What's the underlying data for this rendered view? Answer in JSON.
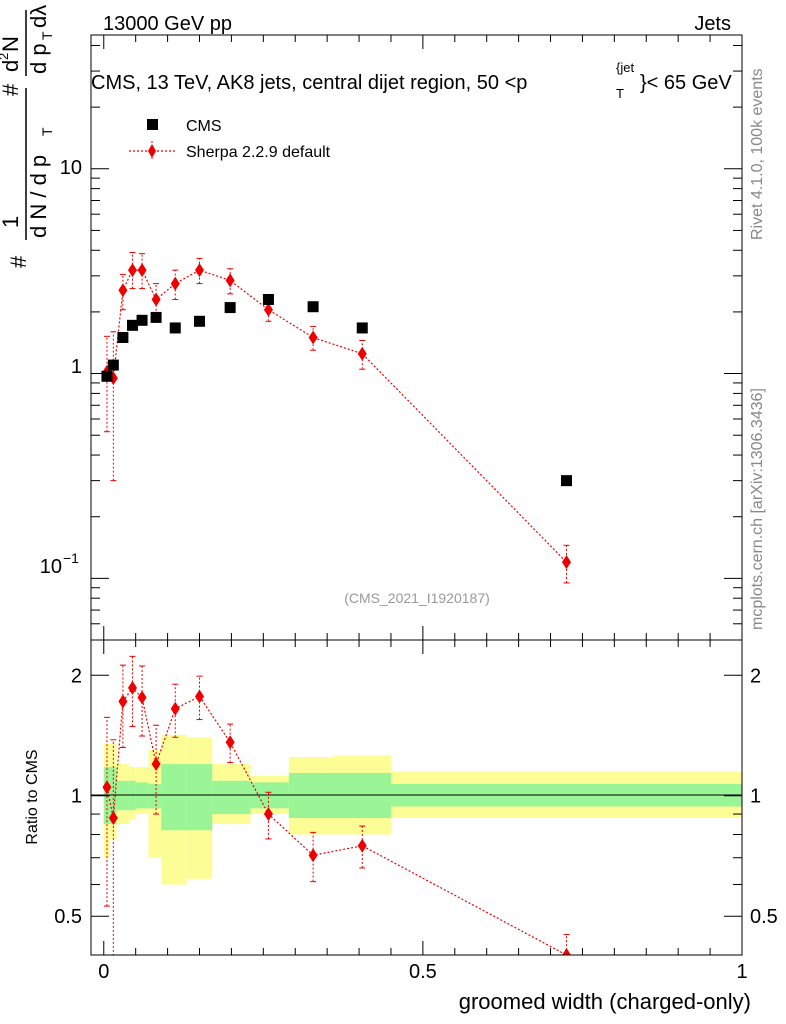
{
  "header": {
    "left": "13000 GeV pp",
    "right": "Jets"
  },
  "side_labels": {
    "rivet": "Rivet 4.1.0,  100k events",
    "mcplots": "mcplots.cern.ch [arXiv:1306.3436]"
  },
  "chart_data": [
    {
      "type": "scatter",
      "panel": "main",
      "title": "CMS, 13 TeV, AK8 jets, central dijet region, 50 <p_T^{jet}< 65 GeV",
      "title_parts": {
        "main": "CMS, 13 TeV, AK8 jets, central dijet region, 50 <p",
        "sub": "T",
        "sup": "{jet",
        "tail": "}< 65 GeV"
      },
      "ylabel": "1/(dN/dp_T) · d²N/(dp_T dλ)",
      "ylabel_parts": {
        "hash": "#",
        "one": "1",
        "dN": "d N / d p",
        "T": "T",
        "d2N": "d",
        "two": "2",
        "N": "N",
        "dpT": "d p",
        "dl": "dλ"
      },
      "yscale": "log",
      "ylim": [
        0.05,
        45
      ],
      "xlim": [
        -0.02,
        1.0
      ],
      "y_tick_labels": {
        "ten": "10",
        "one": "1",
        "tenth_base": "10",
        "tenth_exp": "−1"
      },
      "watermark": "(CMS_2021_I1920187)",
      "legend": {
        "position": "top-left",
        "entries": [
          "CMS",
          "Sherpa 2.2.9 default"
        ]
      },
      "series": [
        {
          "name": "CMS",
          "marker": "square",
          "color": "#000000",
          "x": [
            0.005,
            0.015,
            0.03,
            0.045,
            0.06,
            0.082,
            0.112,
            0.15,
            0.198,
            0.258,
            0.328,
            0.405,
            0.725
          ],
          "y": [
            0.97,
            1.1,
            1.5,
            1.72,
            1.82,
            1.88,
            1.67,
            1.8,
            2.1,
            2.3,
            2.12,
            1.67,
            0.3
          ]
        },
        {
          "name": "Sherpa 2.2.9 default",
          "marker": "diamond",
          "color": "#ee0000",
          "x": [
            0.005,
            0.015,
            0.03,
            0.045,
            0.06,
            0.082,
            0.112,
            0.15,
            0.198,
            0.258,
            0.328,
            0.405,
            0.725
          ],
          "y": [
            1.02,
            0.95,
            2.55,
            3.2,
            3.2,
            2.3,
            2.75,
            3.2,
            2.85,
            2.05,
            1.5,
            1.25,
            0.12
          ],
          "yerr_low": [
            0.5,
            0.65,
            0.5,
            0.6,
            0.6,
            0.45,
            0.45,
            0.45,
            0.4,
            0.25,
            0.2,
            0.2,
            0.025
          ],
          "yerr_high": [
            0.5,
            0.65,
            0.5,
            0.7,
            0.65,
            0.45,
            0.45,
            0.45,
            0.4,
            0.25,
            0.2,
            0.2,
            0.025
          ]
        }
      ]
    },
    {
      "type": "scatter",
      "panel": "ratio",
      "ylabel": "Ratio to CMS",
      "xlabel": "groomed width (charged-only)",
      "yscale": "log",
      "ylim": [
        0.4,
        2.45
      ],
      "xlim": [
        -0.02,
        1.0
      ],
      "x_ticks": [
        0,
        0.5,
        1
      ],
      "x_tick_labels": [
        "0",
        "0.5",
        "1"
      ],
      "y_ticks": [
        0.5,
        1,
        2
      ],
      "y_tick_labels": [
        "0.5",
        "1",
        "2"
      ],
      "bands": {
        "bins": [
          [
            0.0,
            0.01
          ],
          [
            0.01,
            0.02
          ],
          [
            0.02,
            0.04
          ],
          [
            0.04,
            0.05
          ],
          [
            0.05,
            0.07
          ],
          [
            0.07,
            0.09
          ],
          [
            0.09,
            0.13
          ],
          [
            0.13,
            0.17
          ],
          [
            0.17,
            0.23
          ],
          [
            0.23,
            0.29
          ],
          [
            0.29,
            0.36
          ],
          [
            0.36,
            0.45
          ],
          [
            0.45,
            1.0
          ]
        ],
        "stat_low": [
          0.85,
          0.85,
          0.92,
          0.92,
          0.93,
          0.93,
          0.82,
          0.82,
          0.9,
          0.93,
          0.88,
          0.88,
          0.94
        ],
        "stat_high": [
          1.18,
          1.18,
          1.09,
          1.09,
          1.08,
          1.07,
          1.2,
          1.2,
          1.09,
          1.08,
          1.14,
          1.14,
          1.07
        ],
        "total_low": [
          0.7,
          0.78,
          0.85,
          0.87,
          0.9,
          0.7,
          0.6,
          0.62,
          0.85,
          0.9,
          0.8,
          0.8,
          0.88
        ],
        "total_high": [
          1.35,
          1.35,
          1.2,
          1.18,
          1.18,
          1.3,
          1.42,
          1.4,
          1.2,
          1.12,
          1.25,
          1.26,
          1.15
        ],
        "stat_color": "#99f595",
        "total_color": "#fdfd96"
      },
      "series": [
        {
          "name": "Sherpa 2.2.9 default",
          "marker": "diamond",
          "color": "#ee0000",
          "x": [
            0.005,
            0.015,
            0.03,
            0.045,
            0.06,
            0.082,
            0.112,
            0.15,
            0.198,
            0.258,
            0.328,
            0.405,
            0.725
          ],
          "y": [
            1.05,
            0.88,
            1.72,
            1.86,
            1.76,
            1.2,
            1.65,
            1.77,
            1.36,
            0.9,
            0.71,
            0.75,
            0.4
          ],
          "yerr_low": [
            0.52,
            0.5,
            0.4,
            0.37,
            0.35,
            0.3,
            0.25,
            0.22,
            0.15,
            0.12,
            0.1,
            0.09,
            0.05
          ],
          "yerr_high": [
            0.52,
            0.5,
            0.4,
            0.37,
            0.35,
            0.3,
            0.25,
            0.22,
            0.15,
            0.12,
            0.1,
            0.09,
            0.05
          ]
        }
      ]
    }
  ]
}
